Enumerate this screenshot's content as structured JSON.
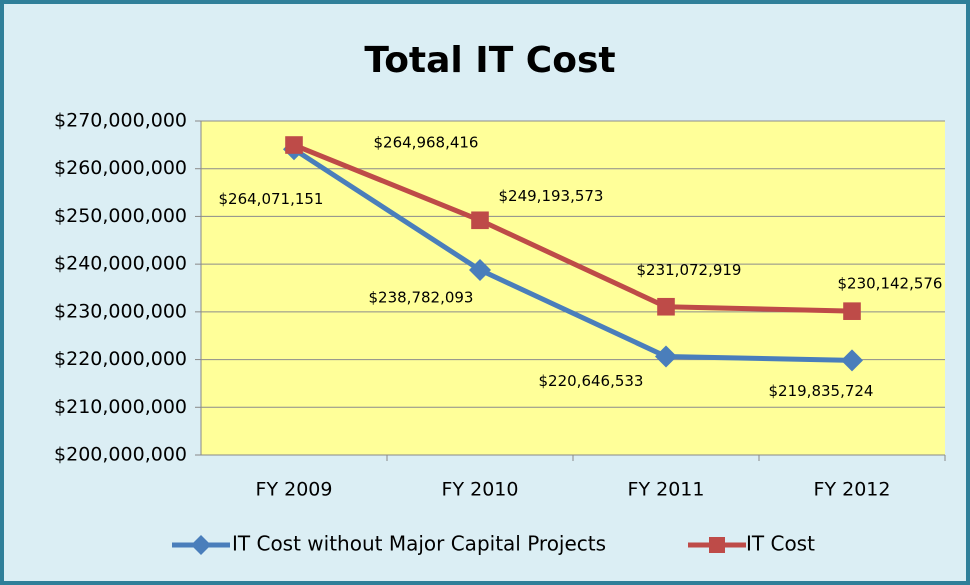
{
  "chart_data": {
    "type": "line",
    "title": "Total IT Cost",
    "categories": [
      "FY 2009",
      "FY 2010",
      "FY 2011",
      "FY 2012"
    ],
    "series": [
      {
        "name": "IT Cost without Major Capital Projects",
        "color": "#4a7ebb",
        "marker": "diamond",
        "values": [
          264071151,
          238782093,
          220646533,
          219835724
        ],
        "value_labels": [
          "$264,071,151",
          "$238,782,093",
          "$220,646,533",
          "$219,835,724"
        ]
      },
      {
        "name": "IT Cost",
        "color": "#be4b48",
        "marker": "square",
        "values": [
          264968416,
          249193573,
          231072919,
          230142576
        ],
        "value_labels": [
          "$264,968,416",
          "$249,193,573",
          "$231,072,919",
          "$230,142,576"
        ]
      }
    ],
    "ylim": [
      200000000,
      270000000
    ],
    "yticks": [
      {
        "value": 200000000,
        "label": "$200,000,000"
      },
      {
        "value": 210000000,
        "label": "$210,000,000"
      },
      {
        "value": 220000000,
        "label": "$220,000,000"
      },
      {
        "value": 230000000,
        "label": "$230,000,000"
      },
      {
        "value": 240000000,
        "label": "$240,000,000"
      },
      {
        "value": 250000000,
        "label": "$250,000,000"
      },
      {
        "value": 260000000,
        "label": "$260,000,000"
      },
      {
        "value": 270000000,
        "label": "$270,000,000"
      }
    ],
    "grid": true,
    "legend": "bottom",
    "plot_background": "#ffff99"
  }
}
